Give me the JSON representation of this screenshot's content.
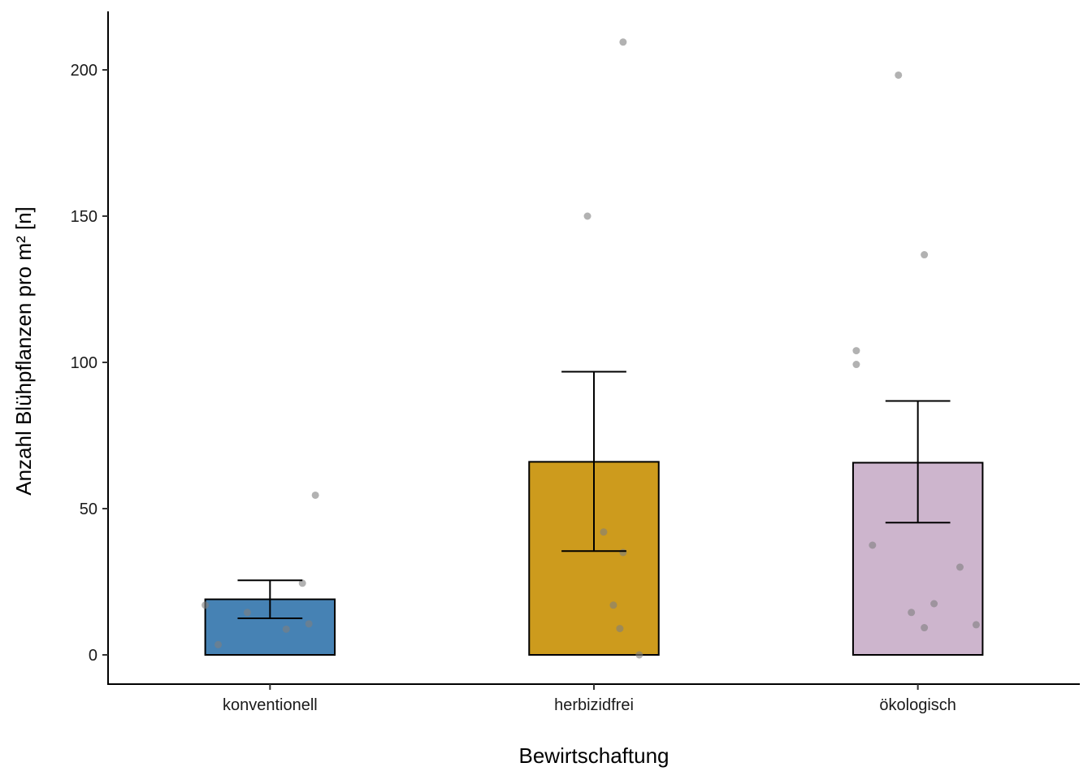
{
  "chart_data": {
    "type": "bar",
    "title": "",
    "xlabel": "Bewirtschaftung",
    "ylabel": "Anzahl Blühpflanzen pro m² [n]",
    "ylim": [
      -10,
      220
    ],
    "yticks": [
      0,
      50,
      100,
      150,
      200
    ],
    "grid": false,
    "legend": "none",
    "categories": [
      "konventionell",
      "herbizidfrei",
      "ökologisch"
    ],
    "colors": [
      "#4682B4",
      "#CD9B1D",
      "#CDB5CD"
    ],
    "point_color": "#7f7f7f",
    "values": [
      19,
      66,
      65.7
    ],
    "error_bars": [
      {
        "low": 12.5,
        "high": 25.5
      },
      {
        "low": 35.5,
        "high": 96.8
      },
      {
        "low": 45.2,
        "high": 86.8
      }
    ],
    "points": [
      [
        {
          "x_offset": -0.2,
          "y": 17
        },
        {
          "x_offset": -0.07,
          "y": 14.5
        },
        {
          "x_offset": 0.05,
          "y": 8.8
        },
        {
          "x_offset": 0.12,
          "y": 10.6
        },
        {
          "x_offset": -0.16,
          "y": 3.5
        },
        {
          "x_offset": 0.1,
          "y": 24.5
        },
        {
          "x_offset": 0.14,
          "y": 54.6
        }
      ],
      [
        {
          "x_offset": 0.03,
          "y": 42
        },
        {
          "x_offset": 0.09,
          "y": 35
        },
        {
          "x_offset": 0.06,
          "y": 17
        },
        {
          "x_offset": 0.08,
          "y": 9
        },
        {
          "x_offset": 0.14,
          "y": 0
        },
        {
          "x_offset": -0.02,
          "y": 150
        },
        {
          "x_offset": 0.09,
          "y": 209.5
        }
      ],
      [
        {
          "x_offset": -0.14,
          "y": 37.5
        },
        {
          "x_offset": 0.13,
          "y": 30
        },
        {
          "x_offset": -0.02,
          "y": 14.5
        },
        {
          "x_offset": 0.05,
          "y": 17.5
        },
        {
          "x_offset": 0.02,
          "y": 9.3
        },
        {
          "x_offset": 0.18,
          "y": 10.3
        },
        {
          "x_offset": -0.19,
          "y": 104
        },
        {
          "x_offset": -0.19,
          "y": 99.3
        },
        {
          "x_offset": 0.02,
          "y": 136.8
        },
        {
          "x_offset": -0.06,
          "y": 198.2
        }
      ]
    ]
  }
}
